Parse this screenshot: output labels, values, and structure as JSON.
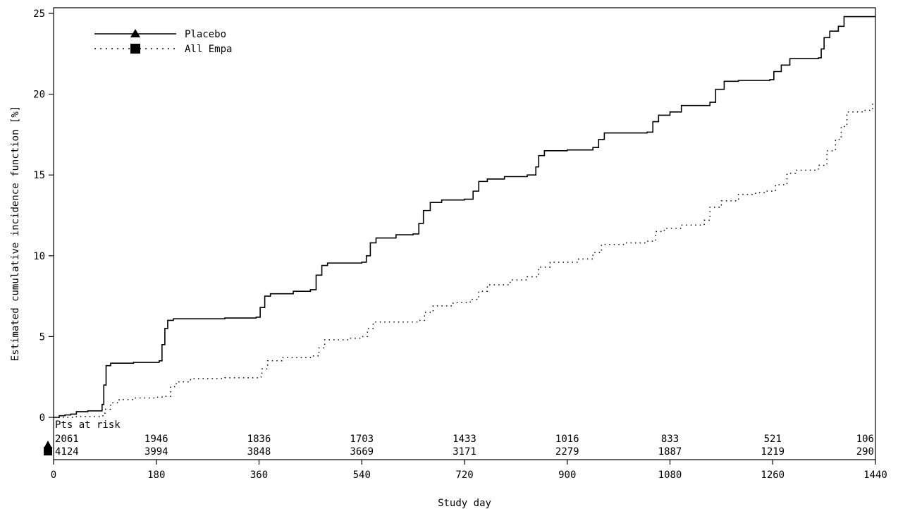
{
  "chart_data": {
    "type": "line",
    "xlabel": "Study day",
    "ylabel": "Estimated cumulative incidence function [%]",
    "xlim": [
      0,
      1440
    ],
    "ylim": [
      0,
      25
    ],
    "x_ticks": [
      0,
      180,
      360,
      540,
      720,
      900,
      1080,
      1260,
      1440
    ],
    "y_ticks": [
      0,
      5,
      10,
      15,
      20,
      25
    ],
    "grid": false,
    "legend_position": "top-left",
    "series": [
      {
        "name": "Placebo",
        "line_style": "solid",
        "marker": "triangle",
        "step": true,
        "points": [
          [
            0,
            0
          ],
          [
            10,
            0.1
          ],
          [
            20,
            0.15
          ],
          [
            30,
            0.2
          ],
          [
            40,
            0.35
          ],
          [
            60,
            0.4
          ],
          [
            80,
            0.4
          ],
          [
            85,
            0.8
          ],
          [
            88,
            2.0
          ],
          [
            92,
            3.2
          ],
          [
            100,
            3.35
          ],
          [
            140,
            3.4
          ],
          [
            185,
            3.5
          ],
          [
            190,
            4.5
          ],
          [
            195,
            5.5
          ],
          [
            200,
            6.0
          ],
          [
            210,
            6.1
          ],
          [
            300,
            6.15
          ],
          [
            355,
            6.2
          ],
          [
            362,
            6.8
          ],
          [
            370,
            7.5
          ],
          [
            380,
            7.65
          ],
          [
            420,
            7.8
          ],
          [
            450,
            7.9
          ],
          [
            460,
            8.8
          ],
          [
            470,
            9.4
          ],
          [
            480,
            9.55
          ],
          [
            540,
            9.6
          ],
          [
            548,
            10.0
          ],
          [
            555,
            10.8
          ],
          [
            565,
            11.1
          ],
          [
            600,
            11.3
          ],
          [
            630,
            11.35
          ],
          [
            640,
            12.0
          ],
          [
            648,
            12.8
          ],
          [
            660,
            13.3
          ],
          [
            680,
            13.45
          ],
          [
            720,
            13.5
          ],
          [
            735,
            14.0
          ],
          [
            745,
            14.6
          ],
          [
            760,
            14.75
          ],
          [
            790,
            14.9
          ],
          [
            830,
            15.0
          ],
          [
            845,
            15.5
          ],
          [
            850,
            16.2
          ],
          [
            860,
            16.5
          ],
          [
            900,
            16.55
          ],
          [
            945,
            16.7
          ],
          [
            955,
            17.2
          ],
          [
            965,
            17.6
          ],
          [
            1040,
            17.65
          ],
          [
            1050,
            18.3
          ],
          [
            1060,
            18.7
          ],
          [
            1080,
            18.9
          ],
          [
            1100,
            19.3
          ],
          [
            1150,
            19.5
          ],
          [
            1160,
            20.3
          ],
          [
            1175,
            20.8
          ],
          [
            1200,
            20.85
          ],
          [
            1255,
            20.9
          ],
          [
            1262,
            21.4
          ],
          [
            1275,
            21.8
          ],
          [
            1290,
            22.2
          ],
          [
            1340,
            22.25
          ],
          [
            1345,
            22.8
          ],
          [
            1350,
            23.5
          ],
          [
            1360,
            23.9
          ],
          [
            1375,
            24.2
          ],
          [
            1385,
            24.8
          ],
          [
            1400,
            24.8
          ],
          [
            1440,
            24.8
          ]
        ]
      },
      {
        "name": "All Empa",
        "line_style": "dotted",
        "marker": "square",
        "step": true,
        "points": [
          [
            0,
            0
          ],
          [
            40,
            0.05
          ],
          [
            80,
            0.1
          ],
          [
            90,
            0.5
          ],
          [
            100,
            0.9
          ],
          [
            115,
            1.1
          ],
          [
            140,
            1.2
          ],
          [
            180,
            1.25
          ],
          [
            190,
            1.3
          ],
          [
            205,
            1.9
          ],
          [
            215,
            2.2
          ],
          [
            240,
            2.4
          ],
          [
            300,
            2.45
          ],
          [
            360,
            2.5
          ],
          [
            365,
            3.0
          ],
          [
            375,
            3.5
          ],
          [
            400,
            3.7
          ],
          [
            450,
            3.8
          ],
          [
            465,
            4.3
          ],
          [
            475,
            4.8
          ],
          [
            520,
            4.9
          ],
          [
            540,
            5.0
          ],
          [
            550,
            5.5
          ],
          [
            560,
            5.9
          ],
          [
            640,
            6.0
          ],
          [
            650,
            6.5
          ],
          [
            665,
            6.9
          ],
          [
            700,
            7.1
          ],
          [
            730,
            7.3
          ],
          [
            745,
            7.8
          ],
          [
            760,
            8.2
          ],
          [
            800,
            8.5
          ],
          [
            830,
            8.7
          ],
          [
            850,
            9.3
          ],
          [
            870,
            9.6
          ],
          [
            920,
            9.8
          ],
          [
            945,
            10.2
          ],
          [
            960,
            10.7
          ],
          [
            1000,
            10.8
          ],
          [
            1040,
            10.9
          ],
          [
            1055,
            11.5
          ],
          [
            1070,
            11.7
          ],
          [
            1100,
            11.9
          ],
          [
            1140,
            12.2
          ],
          [
            1150,
            13.0
          ],
          [
            1170,
            13.4
          ],
          [
            1200,
            13.8
          ],
          [
            1230,
            13.9
          ],
          [
            1250,
            14.0
          ],
          [
            1265,
            14.4
          ],
          [
            1285,
            15.1
          ],
          [
            1300,
            15.3
          ],
          [
            1340,
            15.6
          ],
          [
            1355,
            16.5
          ],
          [
            1370,
            17.2
          ],
          [
            1380,
            18.0
          ],
          [
            1390,
            18.9
          ],
          [
            1420,
            19.0
          ],
          [
            1435,
            19.5
          ]
        ]
      }
    ],
    "risk_table": {
      "header": "Pts at risk",
      "days": [
        0,
        180,
        360,
        540,
        720,
        900,
        1080,
        1260,
        1440
      ],
      "rows": [
        {
          "series": "Placebo",
          "marker": "triangle",
          "values": [
            "2061",
            "1946",
            "1836",
            "1703",
            "1433",
            "1016",
            "833",
            "521",
            "106"
          ]
        },
        {
          "series": "All Empa",
          "marker": "square",
          "values": [
            "4124",
            "3994",
            "3848",
            "3669",
            "3171",
            "2279",
            "1887",
            "1219",
            "290"
          ]
        }
      ]
    }
  }
}
